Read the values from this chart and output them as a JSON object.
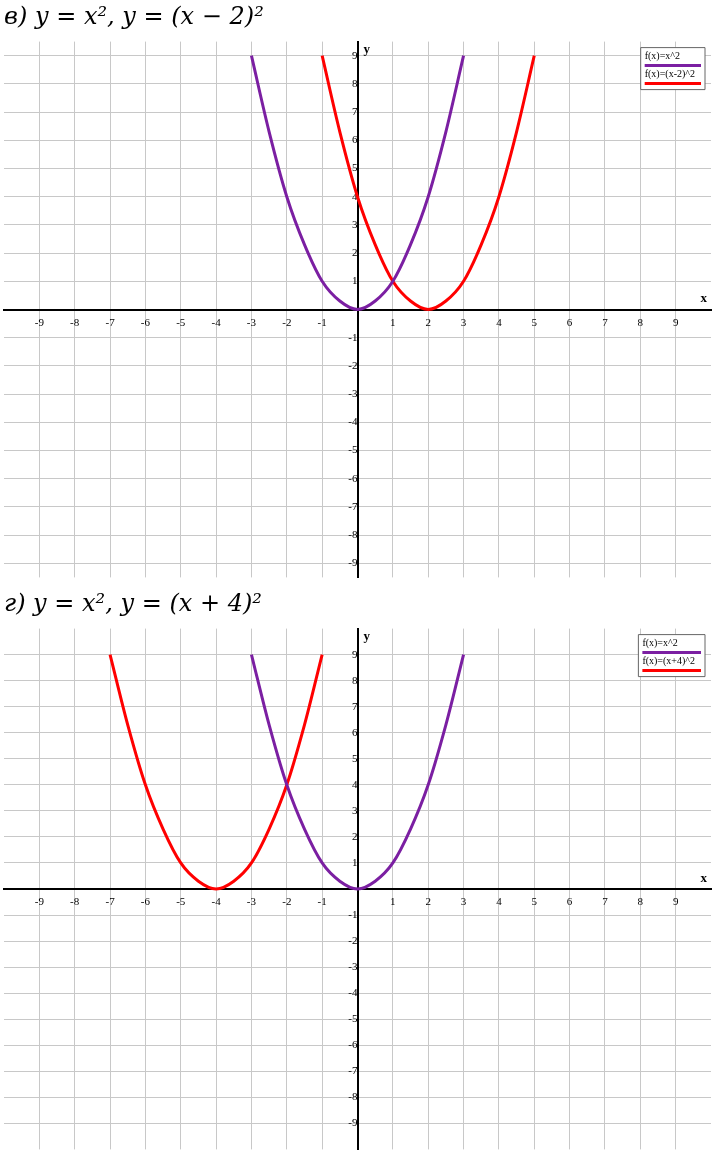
{
  "chart_data": [
    {
      "type": "line",
      "title": "в) y = x²,        y = (x − 2)²",
      "xlabel": "x",
      "ylabel": "y",
      "xlim": [
        -10,
        10
      ],
      "ylim": [
        -9.5,
        9.5
      ],
      "xticks": [
        -9,
        -8,
        -7,
        -6,
        -5,
        -4,
        -3,
        -2,
        -1,
        1,
        2,
        3,
        4,
        5,
        6,
        7,
        8,
        9
      ],
      "yticks": [
        -9,
        -8,
        -7,
        -6,
        -5,
        -4,
        -3,
        -2,
        -1,
        1,
        2,
        3,
        4,
        5,
        6,
        7,
        8,
        9
      ],
      "grid": true,
      "legend": "top right",
      "marker": "none",
      "line_style": "solid",
      "series": [
        {
          "name": "f(x)=x^2",
          "color": "#7b1fa2",
          "x": [
            -3,
            -2.5,
            -2,
            -1.5,
            -1,
            -0.5,
            0,
            0.5,
            1,
            1.5,
            2,
            2.5,
            3
          ],
          "values": [
            9,
            6.3,
            4,
            2.3,
            1,
            0.3,
            0,
            0.3,
            1,
            2.3,
            4,
            6.3,
            9
          ]
        },
        {
          "name": "f(x)=(x-2)^2",
          "color": "#ff0000",
          "x": [
            -1,
            -0.5,
            0,
            0.5,
            1,
            1.5,
            2,
            2.5,
            3,
            3.5,
            4,
            4.5,
            5
          ],
          "values": [
            9,
            6.3,
            4,
            2.3,
            1,
            0.3,
            0,
            0.3,
            1,
            2.3,
            4,
            6.3,
            9
          ]
        }
      ]
    },
    {
      "type": "line",
      "title": "г) y = x²,        y = (x + 4)²",
      "xlabel": "x",
      "ylabel": "y",
      "xlim": [
        -10,
        10
      ],
      "ylim": [
        -10,
        10
      ],
      "xticks": [
        -9,
        -8,
        -7,
        -6,
        -5,
        -4,
        -3,
        -2,
        -1,
        1,
        2,
        3,
        4,
        5,
        6,
        7,
        8,
        9
      ],
      "yticks": [
        -9,
        -8,
        -7,
        -6,
        -5,
        -4,
        -3,
        -2,
        -1,
        1,
        2,
        3,
        4,
        5,
        6,
        7,
        8,
        9
      ],
      "grid": true,
      "legend": "top right",
      "marker": "none",
      "line_style": "solid",
      "series": [
        {
          "name": "f(x)=x^2",
          "color": "#7b1fa2",
          "x": [
            -3,
            -2.5,
            -2,
            -1.5,
            -1,
            -0.5,
            0,
            0.5,
            1,
            1.5,
            2,
            2.5,
            3
          ],
          "values": [
            9,
            6.3,
            4,
            2.3,
            1,
            0.3,
            0,
            0.3,
            1,
            2.3,
            4,
            6.3,
            9
          ]
        },
        {
          "name": "f(x)=(x+4)^2",
          "color": "#ff0000",
          "x": [
            -7,
            -6.5,
            -6,
            -5.5,
            -5,
            -4.5,
            -4,
            -3.5,
            -3,
            -2.5,
            -2,
            -1.5,
            -1
          ],
          "values": [
            9,
            6.3,
            4,
            2.3,
            1,
            0.3,
            0,
            0.3,
            1,
            2.3,
            4,
            6.3,
            9
          ]
        }
      ]
    }
  ]
}
